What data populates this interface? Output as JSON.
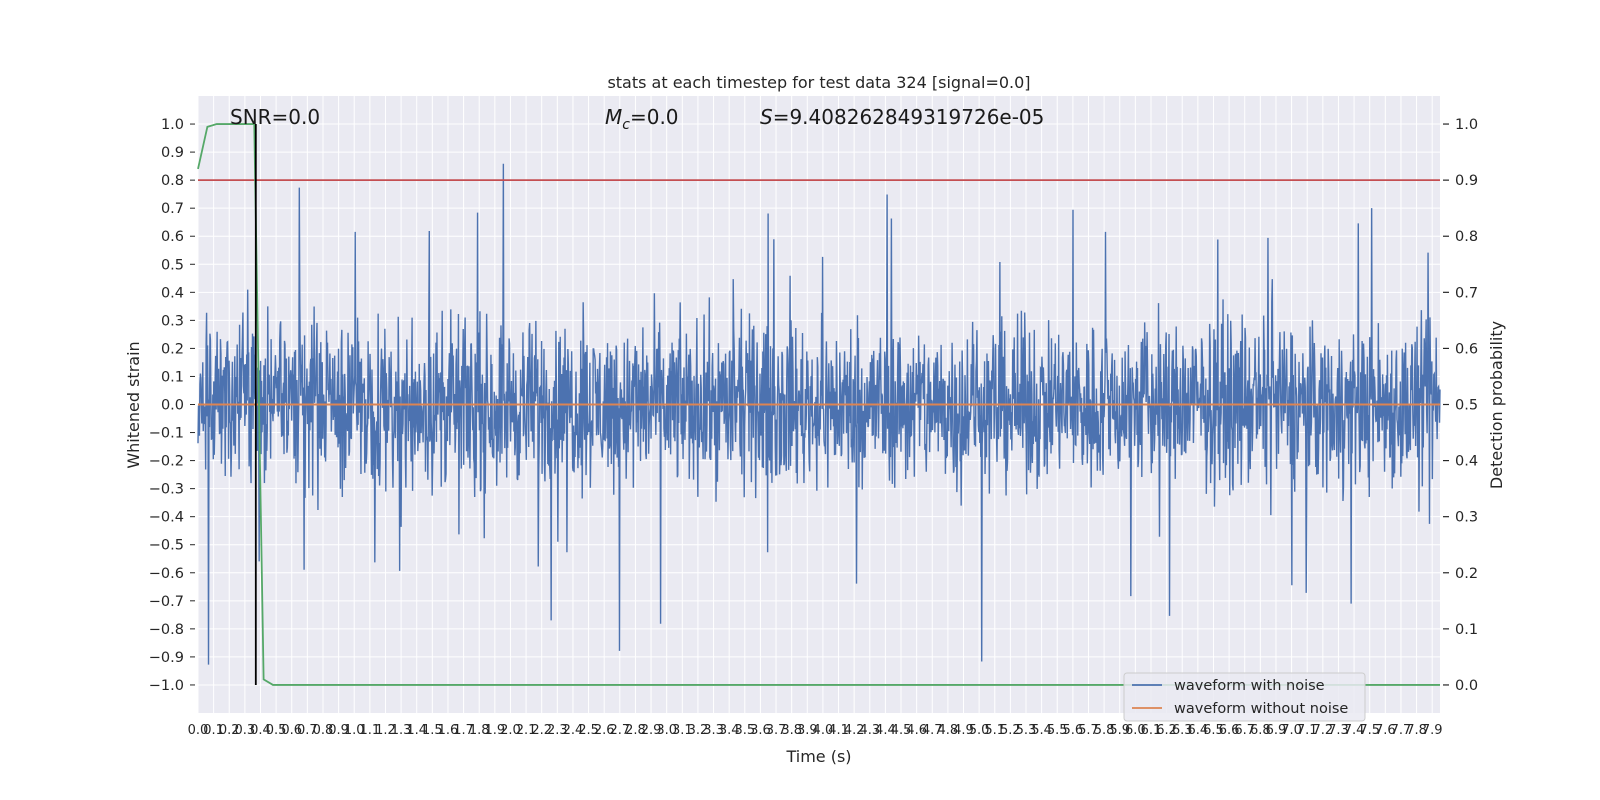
{
  "chart_data": {
    "type": "line",
    "title": "stats at each timestep for test data 324 [signal=0.0]",
    "xlabel": "Time (s)",
    "ylabel": "Whitened strain",
    "y2label": "Detection probability",
    "xlim": [
      0.0,
      7.95
    ],
    "ylim": [
      -1.1,
      1.1
    ],
    "y2lim": [
      -0.05,
      1.05
    ],
    "grid": true,
    "legend_position": "lower-right",
    "x_ticks": [
      "0.0",
      "0.1",
      "0.2",
      "0.3",
      "0.4",
      "0.5",
      "0.6",
      "0.7",
      "0.8",
      "0.9",
      "1.0",
      "1.1",
      "1.2",
      "1.3",
      "1.4",
      "1.5",
      "1.6",
      "1.7",
      "1.8",
      "1.9",
      "2.0",
      "2.1",
      "2.2",
      "2.3",
      "2.4",
      "2.5",
      "2.6",
      "2.7",
      "2.8",
      "2.9",
      "3.0",
      "3.1",
      "3.2",
      "3.3",
      "3.4",
      "3.5",
      "3.6",
      "3.7",
      "3.8",
      "3.9",
      "4.0",
      "4.1",
      "4.2",
      "4.3",
      "4.4",
      "4.5",
      "4.6",
      "4.7",
      "4.8",
      "4.9",
      "5.0",
      "5.1",
      "5.2",
      "5.3",
      "5.4",
      "5.5",
      "5.6",
      "5.7",
      "5.8",
      "5.9",
      "6.0",
      "6.1",
      "6.2",
      "6.3",
      "6.4",
      "6.5",
      "6.6",
      "6.7",
      "6.8",
      "6.9",
      "7.0",
      "7.1",
      "7.2",
      "7.3",
      "7.4",
      "7.5",
      "7.6",
      "7.7",
      "7.8",
      "7.9"
    ],
    "y_ticks": [
      "1.0",
      "0.9",
      "0.8",
      "0.7",
      "0.6",
      "0.5",
      "0.4",
      "0.3",
      "0.2",
      "0.1",
      "0.0",
      "-0.1",
      "-0.2",
      "-0.3",
      "-0.4",
      "-0.5",
      "-0.6",
      "-0.7",
      "-0.8",
      "-0.9",
      "-1.0"
    ],
    "y2_ticks": [
      "1.0",
      "0.9",
      "0.8",
      "0.7",
      "0.6",
      "0.5",
      "0.4",
      "0.3",
      "0.2",
      "0.1",
      "0.0"
    ],
    "annotations": {
      "snr": "SNR=0.0",
      "mc": "=0.0",
      "mc_symbol": "M",
      "mc_sub": "c",
      "s": "=9.408262849319726e-05",
      "s_symbol": "S"
    },
    "series": [
      {
        "name": "waveform with noise",
        "color": "#4c72b0",
        "note": "dense noise trace, approx. amplitude within [-1.0, 0.95]"
      },
      {
        "name": "waveform without noise",
        "color": "#dd8452",
        "values": [
          [
            0.0,
            0.0
          ],
          [
            7.95,
            0.0
          ]
        ]
      },
      {
        "axis": "y2",
        "color": "#55a868",
        "x": [
          0.0,
          0.06,
          0.12,
          0.36,
          0.42,
          0.48,
          7.95
        ],
        "values": [
          0.92,
          0.995,
          1.0,
          1.0,
          0.01,
          0.0,
          0.0
        ]
      },
      {
        "axis": "y2",
        "color": "#c44e52",
        "x": [
          0.0,
          7.95
        ],
        "values": [
          0.9,
          0.9
        ]
      }
    ],
    "vline": {
      "color": "#000000",
      "x": 0.37,
      "y_range": [
        -1.0,
        1.0
      ]
    }
  }
}
